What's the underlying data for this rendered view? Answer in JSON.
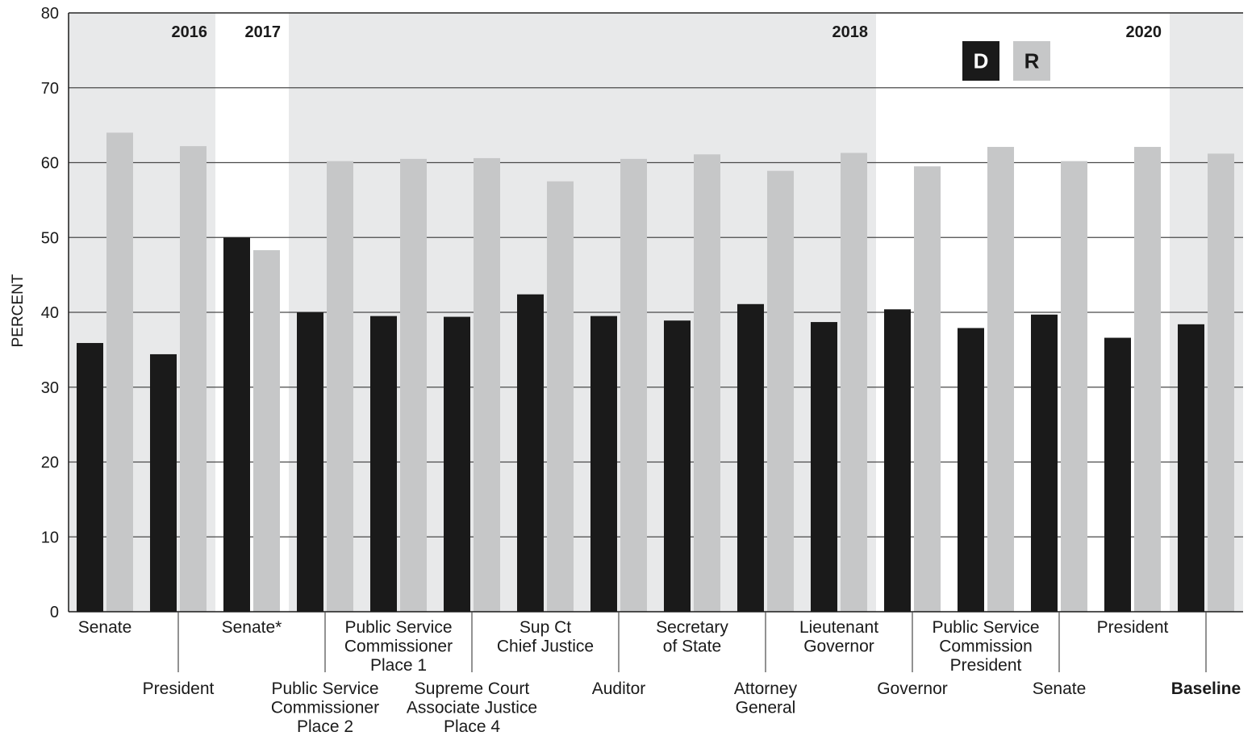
{
  "chart_data": {
    "type": "bar",
    "ylabel": "PERCENT",
    "ylim": [
      0,
      80
    ],
    "yticks": [
      "0",
      "10",
      "20",
      "30",
      "40",
      "50",
      "60",
      "70",
      "80"
    ],
    "grid": true,
    "legend_position": "top-right",
    "categories": [
      [
        "Senate"
      ],
      [
        "President"
      ],
      [
        "Senate*"
      ],
      [
        "Public Service",
        "Commissioner",
        "Place 2"
      ],
      [
        "Public Service",
        "Commissioner",
        "Place 1"
      ],
      [
        "Supreme Court",
        "Associate Justice",
        "Place 4"
      ],
      [
        "Sup Ct",
        "Chief Justice"
      ],
      [
        "Auditor"
      ],
      [
        "Secretary",
        "of State"
      ],
      [
        "Attorney",
        "General"
      ],
      [
        "Lieutenant",
        "Governor"
      ],
      [
        "Governor"
      ],
      [
        "Public Service",
        "Commission",
        "President"
      ],
      [
        "Senate"
      ],
      [
        "President"
      ],
      [
        "Baseline"
      ]
    ],
    "series": [
      {
        "name": "D",
        "color": "#1a1a1a",
        "values": [
          35.9,
          34.4,
          50.0,
          40.0,
          39.5,
          39.4,
          42.4,
          39.5,
          38.9,
          41.1,
          38.7,
          40.4,
          37.9,
          39.7,
          36.6,
          38.4
        ]
      },
      {
        "name": "R",
        "color": "#c6c7c8",
        "values": [
          64.0,
          62.2,
          48.3,
          60.2,
          60.5,
          60.6,
          57.5,
          60.5,
          61.1,
          58.9,
          61.3,
          59.5,
          62.1,
          60.2,
          62.1,
          61.2
        ]
      }
    ],
    "year_labels": [
      "2016",
      "2017",
      "2018",
      "2020"
    ],
    "year_spans": [
      {
        "label": "2016",
        "from": 0,
        "to": 1,
        "shaded": true
      },
      {
        "label": "2017",
        "from": 2,
        "to": 2,
        "shaded": false
      },
      {
        "label": "2018",
        "from": 3,
        "to": 10,
        "shaded": true
      },
      {
        "label": "2020",
        "from": 11,
        "to": 14,
        "shaded": false
      },
      {
        "label": "",
        "from": 15,
        "to": 15,
        "shaded": true
      }
    ],
    "colors": {
      "shade": "#e8e9ea",
      "grid": "#4a4a4a",
      "axis": "#1a1a1a"
    }
  }
}
